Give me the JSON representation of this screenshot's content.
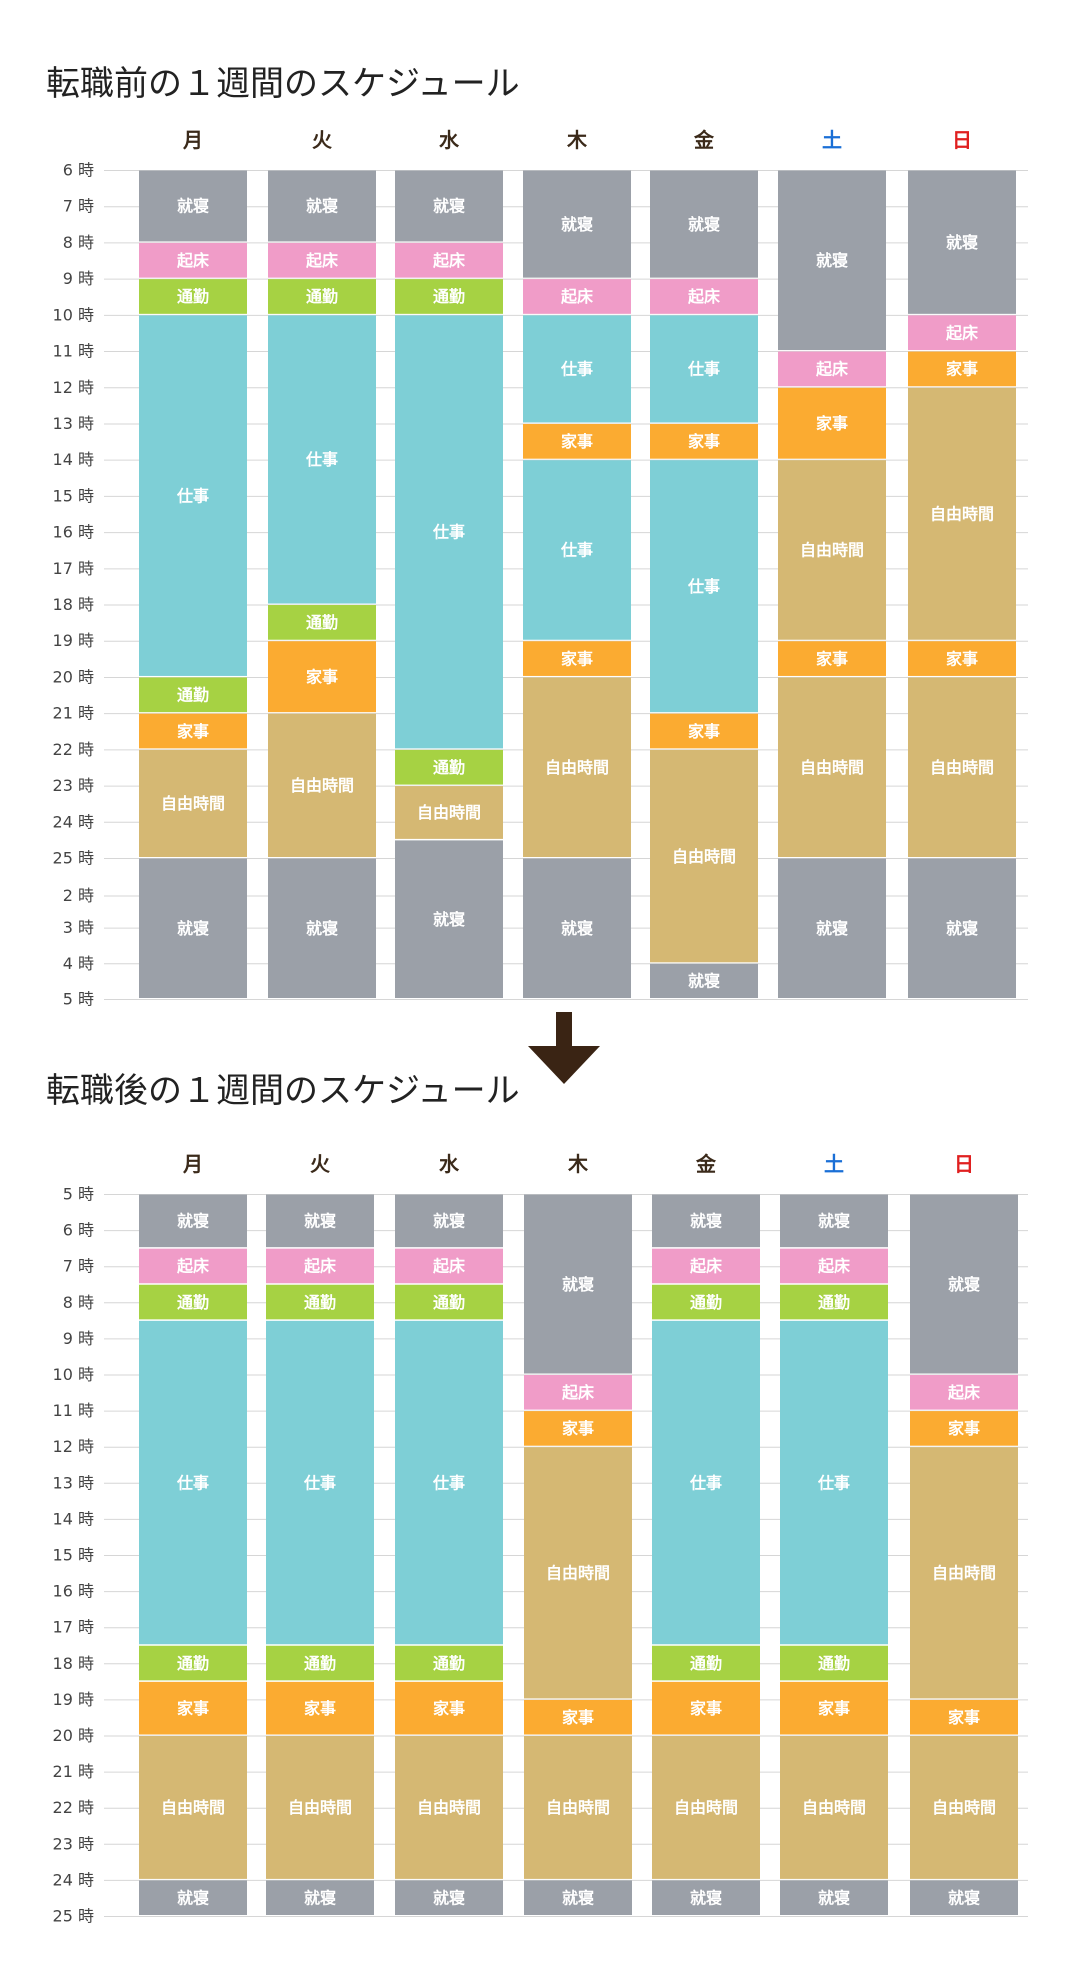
{
  "colors": {
    "就寝": "#9ba0a8",
    "起床": "#f09cc8",
    "通勤": "#a6d243",
    "仕事": "#7ecfd6",
    "家事": "#fbab31",
    "自由時間": "#d5b873",
    "weekday": "#3b2a1a",
    "saturday": "#1a6fd6",
    "sunday": "#e02020",
    "arrow": "#3a2414"
  },
  "arrow_icon": "down-arrow-icon",
  "chart_data": [
    {
      "type": "bar",
      "title": "転職前の１週間のスケジュール",
      "ticks": [
        "6 時",
        "7 時",
        "8 時",
        "9 時",
        "10 時",
        "11 時",
        "12 時",
        "13 時",
        "14 時",
        "15 時",
        "16 時",
        "17 時",
        "18 時",
        "19 時",
        "20 時",
        "21 時",
        "22 時",
        "23 時",
        "24 時",
        "25 時",
        "2 時",
        "3 時",
        "4 時",
        "5 時"
      ],
      "tick_values": [
        6,
        7,
        8,
        9,
        10,
        11,
        12,
        13,
        14,
        15,
        16,
        17,
        18,
        19,
        20,
        21,
        22,
        23,
        24,
        25,
        26.1,
        27,
        28,
        29
      ],
      "days": [
        {
          "label": "月",
          "color_key": "weekday",
          "blocks": [
            {
              "label": "就寝",
              "start": 6,
              "end": 8
            },
            {
              "label": "起床",
              "start": 8,
              "end": 9
            },
            {
              "label": "通勤",
              "start": 9,
              "end": 10
            },
            {
              "label": "仕事",
              "start": 10,
              "end": 20
            },
            {
              "label": "通勤",
              "start": 20,
              "end": 21
            },
            {
              "label": "家事",
              "start": 21,
              "end": 22
            },
            {
              "label": "自由時間",
              "start": 22,
              "end": 25
            },
            {
              "label": "就寝",
              "start": 25,
              "end": 29
            }
          ]
        },
        {
          "label": "火",
          "color_key": "weekday",
          "blocks": [
            {
              "label": "就寝",
              "start": 6,
              "end": 8
            },
            {
              "label": "起床",
              "start": 8,
              "end": 9
            },
            {
              "label": "通勤",
              "start": 9,
              "end": 10
            },
            {
              "label": "仕事",
              "start": 10,
              "end": 18
            },
            {
              "label": "通勤",
              "start": 18,
              "end": 19
            },
            {
              "label": "家事",
              "start": 19,
              "end": 21
            },
            {
              "label": "自由時間",
              "start": 21,
              "end": 25
            },
            {
              "label": "就寝",
              "start": 25,
              "end": 29
            }
          ]
        },
        {
          "label": "水",
          "color_key": "weekday",
          "blocks": [
            {
              "label": "就寝",
              "start": 6,
              "end": 8
            },
            {
              "label": "起床",
              "start": 8,
              "end": 9
            },
            {
              "label": "通勤",
              "start": 9,
              "end": 10
            },
            {
              "label": "仕事",
              "start": 10,
              "end": 22
            },
            {
              "label": "通勤",
              "start": 22,
              "end": 23
            },
            {
              "label": "自由時間",
              "start": 23,
              "end": 24.5
            },
            {
              "label": "就寝",
              "start": 24.5,
              "end": 29
            }
          ]
        },
        {
          "label": "木",
          "color_key": "weekday",
          "blocks": [
            {
              "label": "就寝",
              "start": 6,
              "end": 9
            },
            {
              "label": "起床",
              "start": 9,
              "end": 10
            },
            {
              "label": "仕事",
              "start": 10,
              "end": 13
            },
            {
              "label": "家事",
              "start": 13,
              "end": 14
            },
            {
              "label": "仕事",
              "start": 14,
              "end": 19
            },
            {
              "label": "家事",
              "start": 19,
              "end": 20
            },
            {
              "label": "自由時間",
              "start": 20,
              "end": 25
            },
            {
              "label": "就寝",
              "start": 25,
              "end": 29
            }
          ]
        },
        {
          "label": "金",
          "color_key": "weekday",
          "blocks": [
            {
              "label": "就寝",
              "start": 6,
              "end": 9
            },
            {
              "label": "起床",
              "start": 9,
              "end": 10
            },
            {
              "label": "仕事",
              "start": 10,
              "end": 13
            },
            {
              "label": "家事",
              "start": 13,
              "end": 14
            },
            {
              "label": "仕事",
              "start": 14,
              "end": 21
            },
            {
              "label": "家事",
              "start": 21,
              "end": 22
            },
            {
              "label": "自由時間",
              "start": 22,
              "end": 28
            },
            {
              "label": "就寝",
              "start": 28,
              "end": 29
            }
          ]
        },
        {
          "label": "土",
          "color_key": "saturday",
          "blocks": [
            {
              "label": "就寝",
              "start": 6,
              "end": 11
            },
            {
              "label": "起床",
              "start": 11,
              "end": 12
            },
            {
              "label": "家事",
              "start": 12,
              "end": 14
            },
            {
              "label": "自由時間",
              "start": 14,
              "end": 19
            },
            {
              "label": "家事",
              "start": 19,
              "end": 20
            },
            {
              "label": "自由時間",
              "start": 20,
              "end": 25
            },
            {
              "label": "就寝",
              "start": 25,
              "end": 29
            }
          ]
        },
        {
          "label": "日",
          "color_key": "sunday",
          "blocks": [
            {
              "label": "就寝",
              "start": 6,
              "end": 10
            },
            {
              "label": "起床",
              "start": 10,
              "end": 11
            },
            {
              "label": "家事",
              "start": 11,
              "end": 12
            },
            {
              "label": "自由時間",
              "start": 12,
              "end": 19
            },
            {
              "label": "家事",
              "start": 19,
              "end": 20
            },
            {
              "label": "自由時間",
              "start": 20,
              "end": 25
            },
            {
              "label": "就寝",
              "start": 25,
              "end": 29
            }
          ]
        }
      ]
    },
    {
      "type": "bar",
      "title": "転職後の１週間のスケジュール",
      "ticks": [
        "5 時",
        "6 時",
        "7 時",
        "8 時",
        "9 時",
        "10 時",
        "11 時",
        "12 時",
        "13 時",
        "14 時",
        "15 時",
        "16 時",
        "17 時",
        "18 時",
        "19 時",
        "20 時",
        "21 時",
        "22 時",
        "23 時",
        "24 時",
        "25 時"
      ],
      "tick_values": [
        5,
        6,
        7,
        8,
        9,
        10,
        11,
        12,
        13,
        14,
        15,
        16,
        17,
        18,
        19,
        20,
        21,
        22,
        23,
        24,
        25
      ],
      "days": [
        {
          "label": "月",
          "color_key": "weekday",
          "blocks": [
            {
              "label": "就寝",
              "start": 5,
              "end": 6.5
            },
            {
              "label": "起床",
              "start": 6.5,
              "end": 7.5
            },
            {
              "label": "通勤",
              "start": 7.5,
              "end": 8.5
            },
            {
              "label": "仕事",
              "start": 8.5,
              "end": 17.5
            },
            {
              "label": "通勤",
              "start": 17.5,
              "end": 18.5
            },
            {
              "label": "家事",
              "start": 18.5,
              "end": 20
            },
            {
              "label": "自由時間",
              "start": 20,
              "end": 24
            },
            {
              "label": "就寝",
              "start": 24,
              "end": 25
            }
          ]
        },
        {
          "label": "火",
          "color_key": "weekday",
          "blocks": [
            {
              "label": "就寝",
              "start": 5,
              "end": 6.5
            },
            {
              "label": "起床",
              "start": 6.5,
              "end": 7.5
            },
            {
              "label": "通勤",
              "start": 7.5,
              "end": 8.5
            },
            {
              "label": "仕事",
              "start": 8.5,
              "end": 17.5
            },
            {
              "label": "通勤",
              "start": 17.5,
              "end": 18.5
            },
            {
              "label": "家事",
              "start": 18.5,
              "end": 20
            },
            {
              "label": "自由時間",
              "start": 20,
              "end": 24
            },
            {
              "label": "就寝",
              "start": 24,
              "end": 25
            }
          ]
        },
        {
          "label": "水",
          "color_key": "weekday",
          "blocks": [
            {
              "label": "就寝",
              "start": 5,
              "end": 6.5
            },
            {
              "label": "起床",
              "start": 6.5,
              "end": 7.5
            },
            {
              "label": "通勤",
              "start": 7.5,
              "end": 8.5
            },
            {
              "label": "仕事",
              "start": 8.5,
              "end": 17.5
            },
            {
              "label": "通勤",
              "start": 17.5,
              "end": 18.5
            },
            {
              "label": "家事",
              "start": 18.5,
              "end": 20
            },
            {
              "label": "自由時間",
              "start": 20,
              "end": 24
            },
            {
              "label": "就寝",
              "start": 24,
              "end": 25
            }
          ]
        },
        {
          "label": "木",
          "color_key": "weekday",
          "blocks": [
            {
              "label": "就寝",
              "start": 5,
              "end": 10
            },
            {
              "label": "起床",
              "start": 10,
              "end": 11
            },
            {
              "label": "家事",
              "start": 11,
              "end": 12
            },
            {
              "label": "自由時間",
              "start": 12,
              "end": 19
            },
            {
              "label": "家事",
              "start": 19,
              "end": 20
            },
            {
              "label": "自由時間",
              "start": 20,
              "end": 24
            },
            {
              "label": "就寝",
              "start": 24,
              "end": 25
            }
          ]
        },
        {
          "label": "金",
          "color_key": "weekday",
          "blocks": [
            {
              "label": "就寝",
              "start": 5,
              "end": 6.5
            },
            {
              "label": "起床",
              "start": 6.5,
              "end": 7.5
            },
            {
              "label": "通勤",
              "start": 7.5,
              "end": 8.5
            },
            {
              "label": "仕事",
              "start": 8.5,
              "end": 17.5
            },
            {
              "label": "通勤",
              "start": 17.5,
              "end": 18.5
            },
            {
              "label": "家事",
              "start": 18.5,
              "end": 20
            },
            {
              "label": "自由時間",
              "start": 20,
              "end": 24
            },
            {
              "label": "就寝",
              "start": 24,
              "end": 25
            }
          ]
        },
        {
          "label": "土",
          "color_key": "saturday",
          "blocks": [
            {
              "label": "就寝",
              "start": 5,
              "end": 6.5
            },
            {
              "label": "起床",
              "start": 6.5,
              "end": 7.5
            },
            {
              "label": "通勤",
              "start": 7.5,
              "end": 8.5
            },
            {
              "label": "仕事",
              "start": 8.5,
              "end": 17.5
            },
            {
              "label": "通勤",
              "start": 17.5,
              "end": 18.5
            },
            {
              "label": "家事",
              "start": 18.5,
              "end": 20
            },
            {
              "label": "自由時間",
              "start": 20,
              "end": 24
            },
            {
              "label": "就寝",
              "start": 24,
              "end": 25
            }
          ]
        },
        {
          "label": "日",
          "color_key": "sunday",
          "blocks": [
            {
              "label": "就寝",
              "start": 5,
              "end": 10
            },
            {
              "label": "起床",
              "start": 10,
              "end": 11
            },
            {
              "label": "家事",
              "start": 11,
              "end": 12
            },
            {
              "label": "自由時間",
              "start": 12,
              "end": 19
            },
            {
              "label": "家事",
              "start": 19,
              "end": 20
            },
            {
              "label": "自由時間",
              "start": 20,
              "end": 24
            },
            {
              "label": "就寝",
              "start": 24,
              "end": 25
            }
          ]
        }
      ]
    }
  ]
}
